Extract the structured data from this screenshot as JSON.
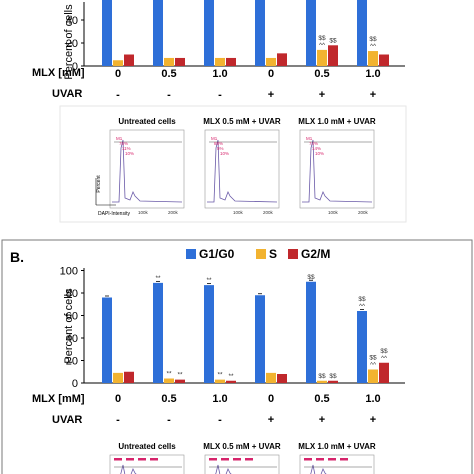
{
  "figure": {
    "colors": {
      "g1": "#2e6fd8",
      "s": "#f2b330",
      "g2m": "#c0282c",
      "axis": "#000000",
      "hist_stroke": "#6a5aa8",
      "hist_label": "#d6246b"
    },
    "conditions": {
      "row_labels": [
        "MLX [mM]",
        "UVAR"
      ],
      "mlx": [
        "0",
        "0.5",
        "1.0",
        "0",
        "0.5",
        "1.0"
      ],
      "uvar": [
        "-",
        "-",
        "-",
        "+",
        "+",
        "+"
      ]
    },
    "panel_a": {
      "ylabel": "Percent of cells",
      "yticks_visible": [
        "0",
        "20",
        "40"
      ],
      "sig_S": [
        "",
        "",
        "",
        "",
        "$$\n^^",
        "$$\n^^"
      ],
      "sig_G2": [
        "",
        "",
        "",
        "",
        "$$",
        ""
      ],
      "hist_titles": [
        "Untreated cells",
        "MLX 0.5 mM + UVAR",
        "MLX 1.0 mM + UVAR"
      ],
      "hist_ylabel": "Percent",
      "hist_xlabel": "DAPI-Intensity",
      "hist_xticks": [
        "100k",
        "200k"
      ],
      "hist_gate_labels": [
        [
          "M1",
          "76%",
          "11%",
          "10%"
        ],
        [
          "M1",
          "88%",
          "5%",
          "10%"
        ],
        [
          "M1",
          "74%",
          "14%",
          "10%"
        ]
      ]
    },
    "panel_b": {
      "label": "B.",
      "legend": [
        "G1/G0",
        "S",
        "G2/M"
      ],
      "ylabel": "Percent of cells",
      "yticks": [
        "0",
        "20",
        "40",
        "60",
        "80",
        "100"
      ],
      "sig_G1": [
        "",
        "**",
        "**",
        "",
        "$$",
        "$$\n^^"
      ],
      "sig_S": [
        "",
        "**",
        "**",
        "",
        "$$",
        "$$\n^^"
      ],
      "sig_G2": [
        "",
        "**",
        "**",
        "",
        "$$",
        "$$\n^^"
      ],
      "hist_titles": [
        "Untreated cells",
        "MLX 0.5 mM + UVAR",
        "MLX 1.0 mM + UVAR"
      ]
    }
  },
  "chart_data": [
    {
      "type": "bar",
      "panel": "A",
      "categories": [
        "0 / -",
        "0.5 / -",
        "1.0 / -",
        "0 / +",
        "0.5 / +",
        "1.0 / +"
      ],
      "ylabel": "Percent of cells",
      "ylim_visible": [
        0,
        60
      ],
      "series": [
        {
          "name": "G1/G0",
          "values": [
            null,
            null,
            null,
            null,
            null,
            null
          ]
        },
        {
          "name": "S",
          "values": [
            5,
            7,
            7,
            7,
            14,
            13
          ]
        },
        {
          "name": "G2/M",
          "values": [
            10,
            7,
            7,
            11,
            18,
            10
          ]
        }
      ]
    },
    {
      "type": "bar",
      "panel": "B",
      "categories": [
        "0 / -",
        "0.5 / -",
        "1.0 / -",
        "0 / +",
        "0.5 / +",
        "1.0 / +"
      ],
      "ylabel": "Percent of cells",
      "ylim": [
        0,
        100
      ],
      "series": [
        {
          "name": "G1/G0",
          "values": [
            76,
            89,
            87,
            78,
            90,
            64
          ]
        },
        {
          "name": "S",
          "values": [
            9,
            4,
            3,
            9,
            2,
            12
          ]
        },
        {
          "name": "G2/M",
          "values": [
            10,
            3,
            2,
            8,
            2,
            18
          ]
        }
      ]
    }
  ]
}
